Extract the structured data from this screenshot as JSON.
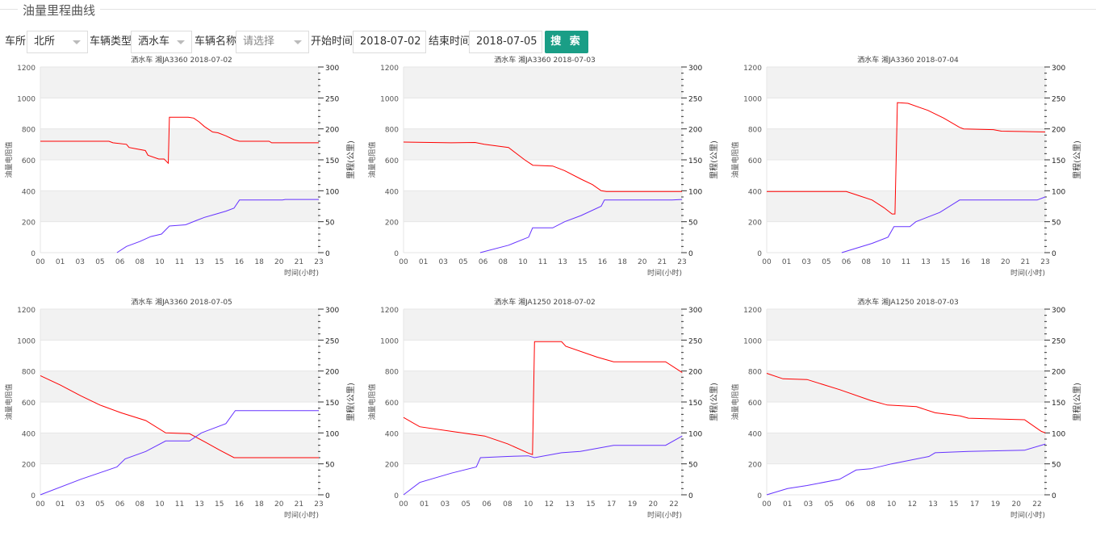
{
  "page": {
    "title": "油量里程曲线"
  },
  "filters": {
    "depot_label": "车所",
    "depot_value": "北所",
    "type_label": "车辆类型",
    "type_value": "洒水车",
    "name_label": "车辆名称",
    "name_placeholder": "请选择",
    "start_label": "开始时间",
    "start_value": "2018-07-02",
    "end_label": "结束时间",
    "end_value": "2018-07-05",
    "search_label": "搜 索"
  },
  "colors": {
    "fuel": "#ff0000",
    "mileage": "#6633ff",
    "button": "#1a9e86",
    "band": "#f2f2f2"
  },
  "chart_data": [
    {
      "type": "line",
      "title": "洒水车  湘JA3360   2018-07-02",
      "xlabel": "时间(小时)",
      "ylabel": "油量电阻值",
      "y2label": "里程(公里)",
      "categories": [
        "00",
        "01",
        "03",
        "05",
        "06",
        "08",
        "10",
        "11",
        "13",
        "15",
        "16",
        "18",
        "20",
        "21",
        "23"
      ],
      "ylim": [
        0,
        1200
      ],
      "y2lim": [
        0,
        300
      ],
      "grid": true,
      "series": [
        {
          "axis": "left",
          "color": "#ff0000",
          "points": [
            [
              0,
              720
            ],
            [
              3.45,
              720
            ],
            [
              3.65,
              710
            ],
            [
              4.33,
              700
            ],
            [
              4.46,
              680
            ],
            [
              4.87,
              670
            ],
            [
              5.28,
              660
            ],
            [
              5.41,
              630
            ],
            [
              5.95,
              605
            ],
            [
              6.22,
              605
            ],
            [
              6.43,
              578
            ],
            [
              6.49,
              875
            ],
            [
              7.44,
              875
            ],
            [
              7.71,
              870
            ],
            [
              7.98,
              845
            ],
            [
              8.25,
              815
            ],
            [
              8.66,
              780
            ],
            [
              8.93,
              775
            ],
            [
              9.33,
              755
            ],
            [
              9.74,
              730
            ],
            [
              10.01,
              720
            ],
            [
              11.5,
              720
            ],
            [
              11.63,
              710
            ],
            [
              14,
              710
            ]
          ]
        },
        {
          "axis": "right",
          "color": "#6633ff",
          "points": [
            [
              3.85,
              0
            ],
            [
              4.33,
              10
            ],
            [
              5.0,
              18
            ],
            [
              5.55,
              26
            ],
            [
              6.09,
              30
            ],
            [
              6.49,
              43
            ],
            [
              7.3,
              45
            ],
            [
              7.85,
              52
            ],
            [
              8.25,
              57
            ],
            [
              8.79,
              62
            ],
            [
              9.33,
              67
            ],
            [
              9.74,
              72
            ],
            [
              10.01,
              85
            ],
            [
              12.17,
              85
            ],
            [
              12.31,
              86
            ],
            [
              14,
              86
            ]
          ]
        }
      ]
    },
    {
      "type": "line",
      "title": "洒水车  湘JA3360   2018-07-03",
      "xlabel": "时间(小时)",
      "ylabel": "油量电阻值",
      "y2label": "里程(公里)",
      "categories": [
        "00",
        "01",
        "03",
        "05",
        "06",
        "08",
        "10",
        "11",
        "13",
        "15",
        "16",
        "18",
        "20",
        "21",
        "23"
      ],
      "ylim": [
        0,
        1200
      ],
      "y2lim": [
        0,
        300
      ],
      "grid": true,
      "series": [
        {
          "axis": "left",
          "color": "#ff0000",
          "points": [
            [
              0,
              715
            ],
            [
              2.4,
              710
            ],
            [
              3.6,
              712
            ],
            [
              4.06,
              700
            ],
            [
              5.28,
              680
            ],
            [
              6.09,
              600
            ],
            [
              6.5,
              565
            ],
            [
              7.5,
              560
            ],
            [
              8.1,
              530
            ],
            [
              8.93,
              475
            ],
            [
              9.5,
              440
            ],
            [
              9.94,
              400
            ],
            [
              10.2,
              395
            ],
            [
              14,
              395
            ]
          ]
        },
        {
          "axis": "right",
          "color": "#6633ff",
          "points": [
            [
              3.85,
              0
            ],
            [
              5.28,
              12
            ],
            [
              6.29,
              25
            ],
            [
              6.49,
              40
            ],
            [
              7.5,
              40
            ],
            [
              8.1,
              50
            ],
            [
              8.93,
              60
            ],
            [
              9.94,
              75
            ],
            [
              10.1,
              85
            ],
            [
              13.5,
              85
            ],
            [
              14,
              86
            ]
          ]
        }
      ]
    },
    {
      "type": "line",
      "title": "洒水车  湘JA3360   2018-07-04",
      "xlabel": "时间(小时)",
      "ylabel": "油量电阻值",
      "y2label": "里程(公里)",
      "categories": [
        "00",
        "01",
        "03",
        "05",
        "06",
        "08",
        "10",
        "11",
        "13",
        "15",
        "16",
        "18",
        "20",
        "21",
        "23"
      ],
      "ylim": [
        0,
        1200
      ],
      "y2lim": [
        0,
        300
      ],
      "grid": true,
      "series": [
        {
          "axis": "left",
          "color": "#ff0000",
          "points": [
            [
              0,
              395
            ],
            [
              4.0,
              395
            ],
            [
              4.6,
              370
            ],
            [
              5.3,
              340
            ],
            [
              5.9,
              290
            ],
            [
              6.3,
              250
            ],
            [
              6.45,
              250
            ],
            [
              6.57,
              970
            ],
            [
              7.1,
              965
            ],
            [
              8.1,
              920
            ],
            [
              8.9,
              870
            ],
            [
              9.7,
              810
            ],
            [
              9.9,
              800
            ],
            [
              11.4,
              795
            ],
            [
              11.8,
              785
            ],
            [
              14,
              780
            ]
          ]
        },
        {
          "axis": "right",
          "color": "#6633ff",
          "points": [
            [
              3.77,
              0
            ],
            [
              5.3,
              15
            ],
            [
              6.1,
              25
            ],
            [
              6.4,
              42
            ],
            [
              7.2,
              42
            ],
            [
              7.5,
              50
            ],
            [
              8.7,
              65
            ],
            [
              9.7,
              85
            ],
            [
              13.6,
              85
            ],
            [
              14,
              90
            ]
          ]
        }
      ]
    },
    {
      "type": "line",
      "title": "洒水车  湘JA3360   2018-07-05",
      "xlabel": "时间(小时)",
      "ylabel": "油量电阻值",
      "y2label": "里程(公里)",
      "categories": [
        "00",
        "01",
        "03",
        "05",
        "06",
        "08",
        "10",
        "11",
        "13",
        "15",
        "16",
        "18",
        "20",
        "21",
        "23"
      ],
      "ylim": [
        0,
        1200
      ],
      "y2lim": [
        0,
        300
      ],
      "grid": true,
      "series": [
        {
          "axis": "left",
          "color": "#ff0000",
          "points": [
            [
              0,
              770
            ],
            [
              1.0,
              710
            ],
            [
              2.03,
              640
            ],
            [
              3.0,
              580
            ],
            [
              4.06,
              530
            ],
            [
              5.3,
              480
            ],
            [
              6.3,
              400
            ],
            [
              7.5,
              395
            ],
            [
              8.3,
              340
            ],
            [
              9.0,
              290
            ],
            [
              9.74,
              240
            ],
            [
              14,
              240
            ]
          ]
        },
        {
          "axis": "right",
          "color": "#6633ff",
          "points": [
            [
              0,
              0
            ],
            [
              2.03,
              25
            ],
            [
              3.85,
              45
            ],
            [
              4.26,
              58
            ],
            [
              5.3,
              70
            ],
            [
              6.3,
              87
            ],
            [
              7.5,
              87
            ],
            [
              8.1,
              100
            ],
            [
              9.33,
              115
            ],
            [
              9.8,
              136
            ],
            [
              14,
              136
            ]
          ]
        }
      ]
    },
    {
      "type": "line",
      "title": "洒水车  湘JA1250   2018-07-02",
      "xlabel": "时间(小时)",
      "ylabel": "油量电阻值",
      "y2label": "里程(公里)",
      "categories": [
        "00",
        "01",
        "03",
        "05",
        "06",
        "08",
        "10",
        "12",
        "13",
        "15",
        "17",
        "19",
        "20",
        "22"
      ],
      "ylim": [
        0,
        1200
      ],
      "y2lim": [
        0,
        300
      ],
      "grid": true,
      "series": [
        {
          "axis": "left",
          "color": "#ff0000",
          "points": [
            [
              0,
              500
            ],
            [
              0.78,
              440
            ],
            [
              2.3,
              410
            ],
            [
              3.9,
              380
            ],
            [
              5.0,
              330
            ],
            [
              6.0,
              270
            ],
            [
              6.2,
              260
            ],
            [
              6.3,
              990
            ],
            [
              7.6,
              990
            ],
            [
              7.8,
              960
            ],
            [
              9.3,
              890
            ],
            [
              10.1,
              860
            ],
            [
              12.6,
              860
            ],
            [
              13.4,
              790
            ]
          ]
        },
        {
          "axis": "right",
          "color": "#6633ff",
          "points": [
            [
              0,
              0
            ],
            [
              0.78,
              20
            ],
            [
              2.3,
              35
            ],
            [
              3.5,
              45
            ],
            [
              3.7,
              60
            ],
            [
              5.0,
              62
            ],
            [
              6.0,
              63
            ],
            [
              6.3,
              60
            ],
            [
              7.6,
              68
            ],
            [
              8.5,
              70
            ],
            [
              10.1,
              80
            ],
            [
              12.6,
              80
            ],
            [
              13.4,
              95
            ]
          ]
        }
      ]
    },
    {
      "type": "line",
      "title": "洒水车  湘JA1250   2018-07-03",
      "xlabel": "时间(小时)",
      "ylabel": "油量电阻值",
      "y2label": "里程(公里)",
      "categories": [
        "00",
        "01",
        "03",
        "05",
        "06",
        "08",
        "10",
        "12",
        "13",
        "15",
        "17",
        "19",
        "20",
        "22"
      ],
      "ylim": [
        0,
        1200
      ],
      "y2lim": [
        0,
        300
      ],
      "grid": true,
      "series": [
        {
          "axis": "left",
          "color": "#ff0000",
          "points": [
            [
              0,
              785
            ],
            [
              0.78,
              750
            ],
            [
              1.94,
              745
            ],
            [
              3.5,
              680
            ],
            [
              5.0,
              610
            ],
            [
              5.8,
              580
            ],
            [
              7.2,
              570
            ],
            [
              8.1,
              530
            ],
            [
              9.3,
              510
            ],
            [
              9.7,
              495
            ],
            [
              12.4,
              485
            ],
            [
              13.2,
              410
            ],
            [
              13.4,
              400
            ]
          ]
        },
        {
          "axis": "right",
          "color": "#6633ff",
          "points": [
            [
              0,
              0
            ],
            [
              1.0,
              10
            ],
            [
              1.94,
              15
            ],
            [
              3.5,
              25
            ],
            [
              4.3,
              40
            ],
            [
              5.0,
              42
            ],
            [
              6.0,
              50
            ],
            [
              7.8,
              62
            ],
            [
              8.1,
              68
            ],
            [
              9.7,
              70
            ],
            [
              12.4,
              72
            ],
            [
              13.4,
              82
            ]
          ]
        }
      ]
    }
  ]
}
